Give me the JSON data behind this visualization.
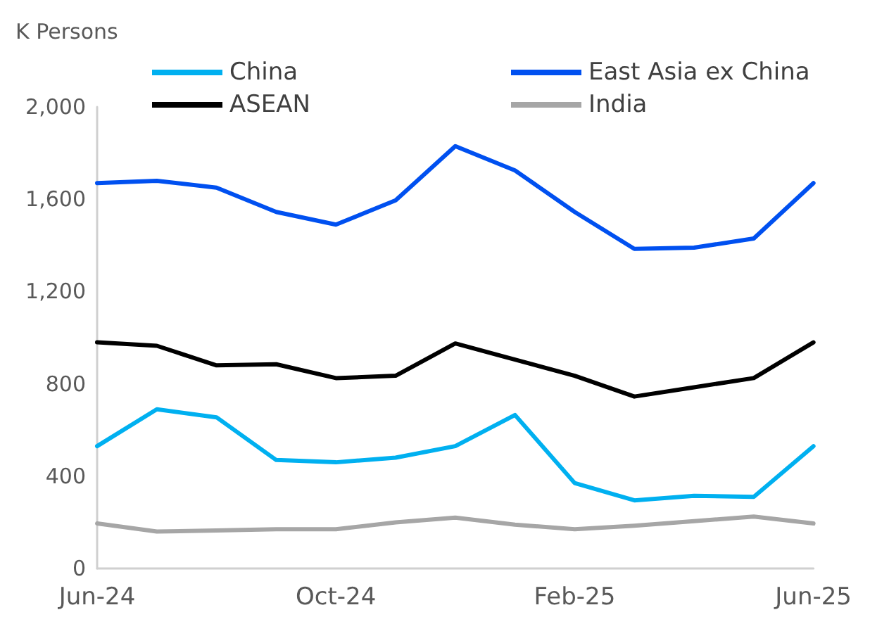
{
  "chart_data": {
    "type": "line",
    "ylabel": "K Persons",
    "categories": [
      "Jun-24",
      null,
      null,
      null,
      "Oct-24",
      null,
      null,
      null,
      "Feb-25",
      null,
      null,
      null,
      "Jun-25"
    ],
    "series": [
      {
        "name": "China",
        "color": "#00b0f0",
        "values": [
          530,
          690,
          655,
          470,
          460,
          480,
          530,
          665,
          370,
          295,
          315,
          310,
          530
        ]
      },
      {
        "name": "East Asia ex China",
        "color": "#0050f0",
        "values": [
          1670,
          1680,
          1650,
          1545,
          1490,
          1595,
          1830,
          1725,
          1545,
          1385,
          1390,
          1430,
          1670
        ]
      },
      {
        "name": "ASEAN",
        "color": "#000000",
        "values": [
          980,
          965,
          880,
          885,
          825,
          835,
          975,
          905,
          835,
          745,
          785,
          825,
          980
        ]
      },
      {
        "name": "India",
        "color": "#a6a6a6",
        "values": [
          195,
          160,
          165,
          170,
          170,
          200,
          220,
          190,
          170,
          185,
          205,
          225,
          195
        ]
      }
    ],
    "ylim": [
      0,
      2000
    ],
    "yticks": [
      0,
      400,
      800,
      {
        "value": 1200,
        "label": "1,200"
      },
      {
        "value": 1600,
        "label": "1,600"
      },
      {
        "value": 2000,
        "label": "2,000"
      }
    ],
    "grid": false,
    "legend": "top",
    "marker": "none",
    "line_style": "solid"
  }
}
